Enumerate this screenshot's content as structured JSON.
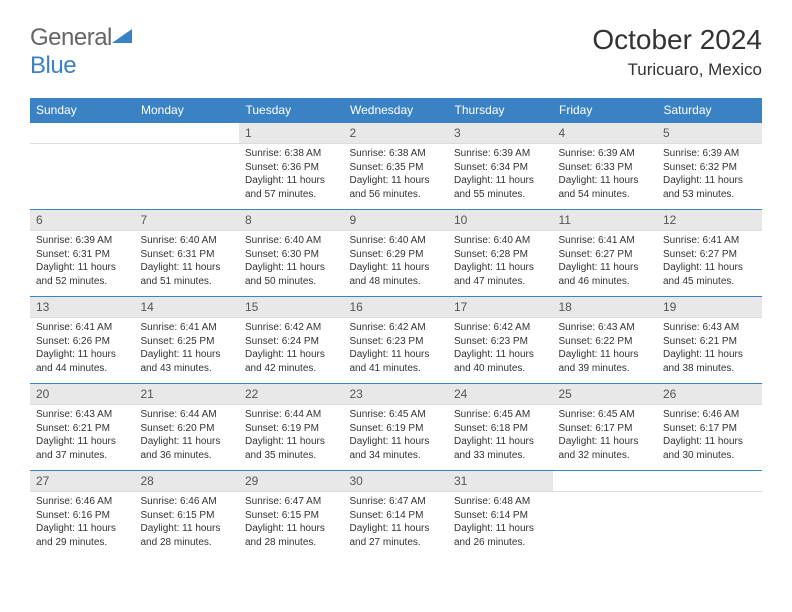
{
  "logo": {
    "first": "General",
    "second": "Blue"
  },
  "title": "October 2024",
  "location": "Turicuaro, Mexico",
  "colors": {
    "header_bg": "#3b82c4",
    "header_fg": "#ffffff",
    "daynum_bg": "#e8e8e8",
    "daynum_fg": "#555555",
    "text_fg": "#333333",
    "logo_gray": "#666666",
    "logo_blue": "#3b82c4"
  },
  "weekdays": [
    "Sunday",
    "Monday",
    "Tuesday",
    "Wednesday",
    "Thursday",
    "Friday",
    "Saturday"
  ],
  "weeks": [
    {
      "nums": [
        "",
        "",
        "1",
        "2",
        "3",
        "4",
        "5"
      ],
      "cells": [
        "",
        "",
        "Sunrise: 6:38 AM\nSunset: 6:36 PM\nDaylight: 11 hours and 57 minutes.",
        "Sunrise: 6:38 AM\nSunset: 6:35 PM\nDaylight: 11 hours and 56 minutes.",
        "Sunrise: 6:39 AM\nSunset: 6:34 PM\nDaylight: 11 hours and 55 minutes.",
        "Sunrise: 6:39 AM\nSunset: 6:33 PM\nDaylight: 11 hours and 54 minutes.",
        "Sunrise: 6:39 AM\nSunset: 6:32 PM\nDaylight: 11 hours and 53 minutes."
      ]
    },
    {
      "nums": [
        "6",
        "7",
        "8",
        "9",
        "10",
        "11",
        "12"
      ],
      "cells": [
        "Sunrise: 6:39 AM\nSunset: 6:31 PM\nDaylight: 11 hours and 52 minutes.",
        "Sunrise: 6:40 AM\nSunset: 6:31 PM\nDaylight: 11 hours and 51 minutes.",
        "Sunrise: 6:40 AM\nSunset: 6:30 PM\nDaylight: 11 hours and 50 minutes.",
        "Sunrise: 6:40 AM\nSunset: 6:29 PM\nDaylight: 11 hours and 48 minutes.",
        "Sunrise: 6:40 AM\nSunset: 6:28 PM\nDaylight: 11 hours and 47 minutes.",
        "Sunrise: 6:41 AM\nSunset: 6:27 PM\nDaylight: 11 hours and 46 minutes.",
        "Sunrise: 6:41 AM\nSunset: 6:27 PM\nDaylight: 11 hours and 45 minutes."
      ]
    },
    {
      "nums": [
        "13",
        "14",
        "15",
        "16",
        "17",
        "18",
        "19"
      ],
      "cells": [
        "Sunrise: 6:41 AM\nSunset: 6:26 PM\nDaylight: 11 hours and 44 minutes.",
        "Sunrise: 6:41 AM\nSunset: 6:25 PM\nDaylight: 11 hours and 43 minutes.",
        "Sunrise: 6:42 AM\nSunset: 6:24 PM\nDaylight: 11 hours and 42 minutes.",
        "Sunrise: 6:42 AM\nSunset: 6:23 PM\nDaylight: 11 hours and 41 minutes.",
        "Sunrise: 6:42 AM\nSunset: 6:23 PM\nDaylight: 11 hours and 40 minutes.",
        "Sunrise: 6:43 AM\nSunset: 6:22 PM\nDaylight: 11 hours and 39 minutes.",
        "Sunrise: 6:43 AM\nSunset: 6:21 PM\nDaylight: 11 hours and 38 minutes."
      ]
    },
    {
      "nums": [
        "20",
        "21",
        "22",
        "23",
        "24",
        "25",
        "26"
      ],
      "cells": [
        "Sunrise: 6:43 AM\nSunset: 6:21 PM\nDaylight: 11 hours and 37 minutes.",
        "Sunrise: 6:44 AM\nSunset: 6:20 PM\nDaylight: 11 hours and 36 minutes.",
        "Sunrise: 6:44 AM\nSunset: 6:19 PM\nDaylight: 11 hours and 35 minutes.",
        "Sunrise: 6:45 AM\nSunset: 6:19 PM\nDaylight: 11 hours and 34 minutes.",
        "Sunrise: 6:45 AM\nSunset: 6:18 PM\nDaylight: 11 hours and 33 minutes.",
        "Sunrise: 6:45 AM\nSunset: 6:17 PM\nDaylight: 11 hours and 32 minutes.",
        "Sunrise: 6:46 AM\nSunset: 6:17 PM\nDaylight: 11 hours and 30 minutes."
      ]
    },
    {
      "nums": [
        "27",
        "28",
        "29",
        "30",
        "31",
        "",
        ""
      ],
      "cells": [
        "Sunrise: 6:46 AM\nSunset: 6:16 PM\nDaylight: 11 hours and 29 minutes.",
        "Sunrise: 6:46 AM\nSunset: 6:15 PM\nDaylight: 11 hours and 28 minutes.",
        "Sunrise: 6:47 AM\nSunset: 6:15 PM\nDaylight: 11 hours and 28 minutes.",
        "Sunrise: 6:47 AM\nSunset: 6:14 PM\nDaylight: 11 hours and 27 minutes.",
        "Sunrise: 6:48 AM\nSunset: 6:14 PM\nDaylight: 11 hours and 26 minutes.",
        "",
        ""
      ]
    }
  ]
}
